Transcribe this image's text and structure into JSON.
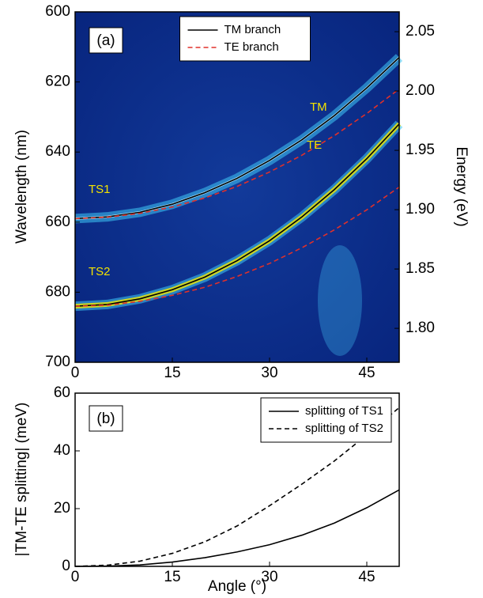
{
  "chart_data": [
    {
      "type": "line",
      "ylabel": "Wavelength (nm)",
      "y2label": "Energy (eV)",
      "annotations": [
        "(a)",
        "TM",
        "TE",
        "TS1",
        "TS2"
      ],
      "legend": "upper center",
      "x": [
        0,
        5,
        10,
        15,
        20,
        25,
        30,
        35,
        40,
        45,
        50
      ],
      "xlim": [
        0,
        50
      ],
      "xticks": [
        0,
        15,
        30,
        45
      ],
      "ylim": [
        700,
        600
      ],
      "yticks": [
        600,
        620,
        640,
        660,
        680,
        700
      ],
      "y2lim": [
        1.7714,
        2.0667
      ],
      "y2ticks": [
        2.05,
        {
          "value": 2,
          "label": "2.00"
        },
        1.95,
        {
          "value": 1.9,
          "label": "1.90"
        },
        1.85,
        {
          "value": 1.8,
          "label": "1.80"
        }
      ],
      "series": [
        {
          "name": "TM branch",
          "color": "#000000",
          "dash": false,
          "values": [
            659,
            658.5,
            657.2,
            654.9,
            651.6,
            647.5,
            642.4,
            636.5,
            629.6,
            621.7,
            613.0
          ]
        },
        {
          "name": "TE branch",
          "color": "#e0302a",
          "dash": true,
          "values": [
            659,
            658.6,
            657.5,
            655.7,
            653.1,
            649.8,
            645.7,
            640.9,
            635.3,
            629.0,
            622.0
          ]
        },
        {
          "color": "#000000",
          "dash": false,
          "values": [
            684,
            683.5,
            681.9,
            679.3,
            675.7,
            671.0,
            665.3,
            658.5,
            650.7,
            641.9,
            632.0
          ]
        },
        {
          "color": "#e0302a",
          "dash": true,
          "values": [
            684,
            683.7,
            682.6,
            680.9,
            678.6,
            675.5,
            671.8,
            667.3,
            662.2,
            656.5,
            650.0
          ]
        }
      ]
    },
    {
      "type": "line",
      "xlabel": "Angle (°)",
      "ylabel": "|TM-TE splitting| (meV)",
      "annotations": [
        "(b)"
      ],
      "legend": "upper right",
      "x": [
        0,
        5,
        10,
        15,
        20,
        25,
        30,
        35,
        40,
        45,
        50
      ],
      "xlim": [
        0,
        50
      ],
      "xticks": [
        0,
        15,
        30,
        45
      ],
      "ylim": [
        0,
        60
      ],
      "yticks": [
        0,
        20,
        40,
        60
      ],
      "series": [
        {
          "name": "splitting of TS1",
          "color": "#000000",
          "dash": false,
          "values": [
            0,
            0.1,
            0.5,
            1.5,
            3,
            5,
            7.5,
            10.8,
            15,
            20.3,
            26.5
          ]
        },
        {
          "name": "splitting of TS2",
          "color": "#000000",
          "dash": true,
          "values": [
            0,
            0.4,
            1.8,
            4.5,
            8.5,
            14,
            21,
            28.5,
            36.5,
            45.5,
            55
          ]
        }
      ]
    }
  ]
}
